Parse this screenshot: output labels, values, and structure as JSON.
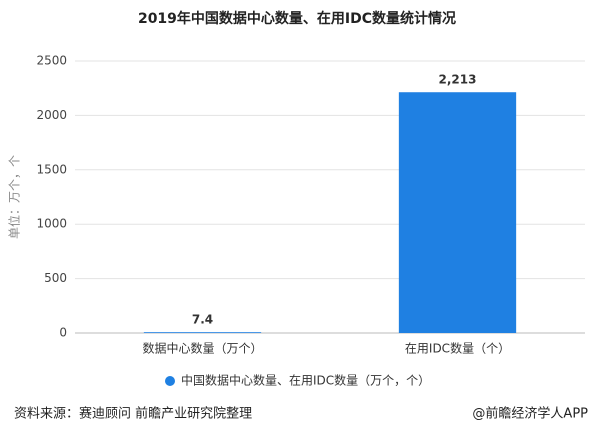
{
  "chart_data": {
    "type": "bar",
    "title": "2019年中国数据中心数量、在用IDC数量统计情况",
    "y_label": "单位：万个，个",
    "categories": [
      "数据中心数量（万个）",
      "在用IDC数量（个）"
    ],
    "series": [
      {
        "name": "中国数据中心数量、在用IDC数量（万个，个）",
        "color": "#1f80e2",
        "values": [
          7.4,
          2213
        ],
        "value_labels": [
          "7.4",
          "2,213"
        ]
      }
    ],
    "ylim": [
      0,
      2500
    ],
    "yticks": [
      0,
      500,
      1000,
      1500,
      2000,
      2500
    ],
    "grid": true,
    "legend": "bottom",
    "source": "资料来源：赛迪顾问 前瞻产业研究院整理",
    "credit": "@前瞻经济学人APP"
  }
}
